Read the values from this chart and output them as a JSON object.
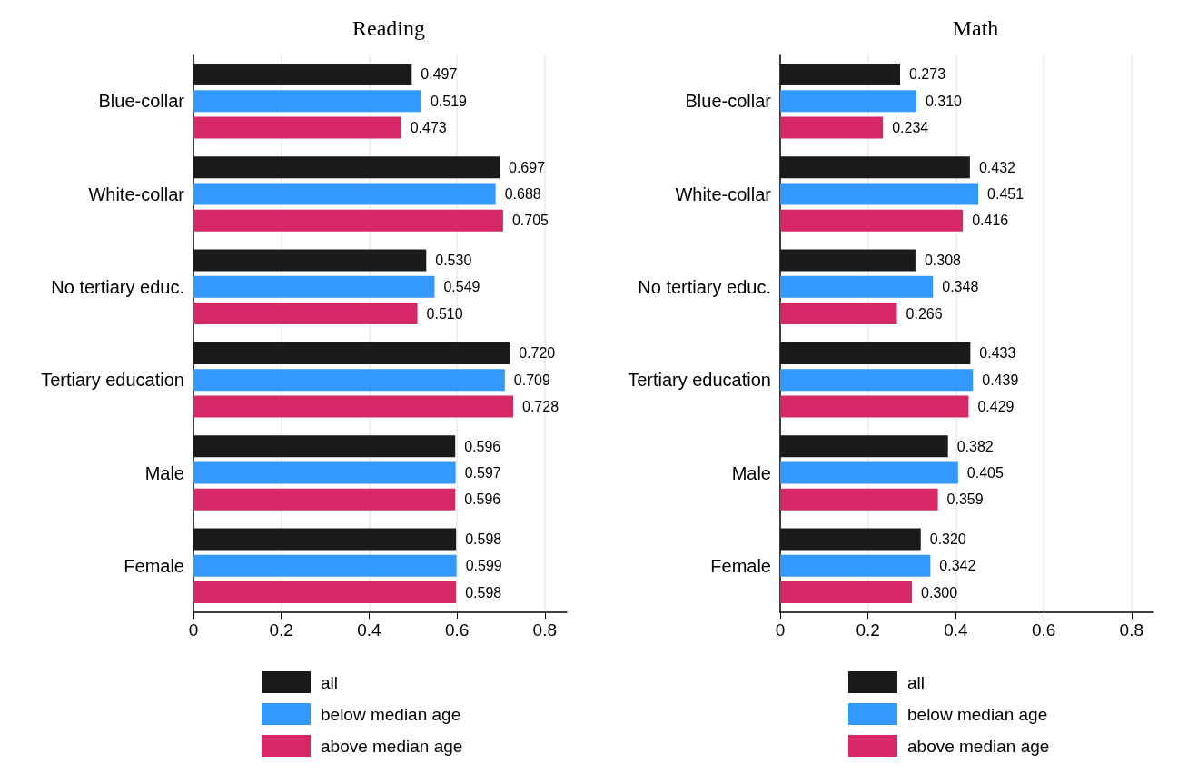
{
  "chart_data": [
    {
      "type": "bar",
      "title": "Reading",
      "orientation": "horizontal",
      "categories": [
        "Blue-collar",
        "White-collar",
        "No tertiary educ.",
        "Tertiary education",
        "Male",
        "Female"
      ],
      "xlim": [
        0,
        0.85
      ],
      "xticks": [
        0,
        0.2,
        0.4,
        0.6,
        0.8
      ],
      "grid": "x",
      "legend": "bottom",
      "series": [
        {
          "name": "all",
          "color": "#1a1a1a",
          "values": [
            0.497,
            0.697,
            0.53,
            0.72,
            0.596,
            0.598
          ],
          "value_labels": [
            "0.497",
            "0.697",
            "0.530",
            "0.720",
            "0.596",
            "0.598"
          ]
        },
        {
          "name": "below median age",
          "color": "#3399ff",
          "values": [
            0.519,
            0.688,
            0.549,
            0.709,
            0.597,
            0.599
          ],
          "value_labels": [
            "0.519",
            "0.688",
            "0.549",
            "0.709",
            "0.597",
            "0.599"
          ]
        },
        {
          "name": "above median age",
          "color": "#d62866",
          "values": [
            0.473,
            0.705,
            0.51,
            0.728,
            0.596,
            0.598
          ],
          "value_labels": [
            "0.473",
            "0.705",
            "0.510",
            "0.728",
            "0.596",
            "0.598"
          ]
        }
      ]
    },
    {
      "type": "bar",
      "title": "Math",
      "orientation": "horizontal",
      "categories": [
        "Blue-collar",
        "White-collar",
        "No tertiary educ.",
        "Tertiary education",
        "Male",
        "Female"
      ],
      "xlim": [
        0,
        0.85
      ],
      "xticks": [
        0,
        0.2,
        0.4,
        0.6,
        0.8
      ],
      "grid": "x",
      "legend": "bottom",
      "series": [
        {
          "name": "all",
          "color": "#1a1a1a",
          "values": [
            0.273,
            0.432,
            0.308,
            0.433,
            0.382,
            0.32
          ],
          "value_labels": [
            "0.273",
            "0.432",
            "0.308",
            "0.433",
            "0.382",
            "0.320"
          ]
        },
        {
          "name": "below median age",
          "color": "#3399ff",
          "values": [
            0.31,
            0.451,
            0.348,
            0.439,
            0.405,
            0.342
          ],
          "value_labels": [
            "0.310",
            "0.451",
            "0.348",
            "0.439",
            "0.405",
            "0.342"
          ]
        },
        {
          "name": "above median age",
          "color": "#d62866",
          "values": [
            0.234,
            0.416,
            0.266,
            0.429,
            0.359,
            0.3
          ],
          "value_labels": [
            "0.234",
            "0.416",
            "0.266",
            "0.429",
            "0.359",
            "0.300"
          ]
        }
      ]
    }
  ]
}
